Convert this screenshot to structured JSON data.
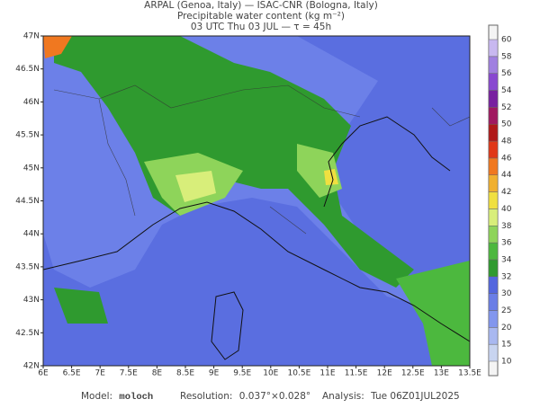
{
  "header": {
    "line1": "ARPAL (Genoa, Italy)  —  ISAC-CNR (Bologna, Italy)",
    "line2": "Precipitable water content (kg m⁻²)",
    "line3": "03 UTC Thu 03 JUL  —  τ = 45h"
  },
  "map": {
    "xlim": [
      6,
      13.5
    ],
    "ylim": [
      42,
      47
    ],
    "xticks": [
      {
        "value": 6,
        "label": "6E"
      },
      {
        "value": 6.5,
        "label": "6.5E"
      },
      {
        "value": 7,
        "label": "7E"
      },
      {
        "value": 7.5,
        "label": "7.5E"
      },
      {
        "value": 8,
        "label": "8E"
      },
      {
        "value": 8.5,
        "label": "8.5E"
      },
      {
        "value": 9,
        "label": "9E"
      },
      {
        "value": 9.5,
        "label": "9.5E"
      },
      {
        "value": 10,
        "label": "10E"
      },
      {
        "value": 10.5,
        "label": "10.5E"
      },
      {
        "value": 11,
        "label": "11E"
      },
      {
        "value": 11.5,
        "label": "11.5E"
      },
      {
        "value": 12,
        "label": "12E"
      },
      {
        "value": 12.5,
        "label": "12.5E"
      },
      {
        "value": 13,
        "label": "13E"
      },
      {
        "value": 13.5,
        "label": "13.5E"
      }
    ],
    "yticks": [
      {
        "value": 42,
        "label": "42N"
      },
      {
        "value": 42.5,
        "label": "42.5N"
      },
      {
        "value": 43,
        "label": "43N"
      },
      {
        "value": 43.5,
        "label": "43.5N"
      },
      {
        "value": 44,
        "label": "44N"
      },
      {
        "value": 44.5,
        "label": "44.5N"
      },
      {
        "value": 45,
        "label": "45N"
      },
      {
        "value": 45.5,
        "label": "45.5N"
      },
      {
        "value": 46,
        "label": "46N"
      },
      {
        "value": 46.5,
        "label": "46.5N"
      },
      {
        "value": 47,
        "label": "47N"
      }
    ]
  },
  "colorbar": {
    "levels": [
      10,
      15,
      20,
      25,
      30,
      32,
      34,
      36,
      38,
      40,
      42,
      44,
      46,
      48,
      50,
      52,
      54,
      56,
      58,
      60
    ],
    "colors": [
      "#c8d4f0",
      "#a9b8f0",
      "#8296ee",
      "#6a7ee6",
      "#5366de",
      "#2f9a2f",
      "#4cb83e",
      "#8ed45a",
      "#d8ee7a",
      "#f0e040",
      "#f0b030",
      "#f07820",
      "#e03818",
      "#b01818",
      "#a01860",
      "#7820a0",
      "#8848d0",
      "#a080e0",
      "#c8b8f0"
    ]
  },
  "footer": {
    "model_label": "Model:",
    "model": "moloch",
    "resolution_label": "Resolution:",
    "resolution": "0.037°×0.028°",
    "analysis_label": "Analysis:",
    "analysis": "Tue 06Z01JUL2025"
  }
}
